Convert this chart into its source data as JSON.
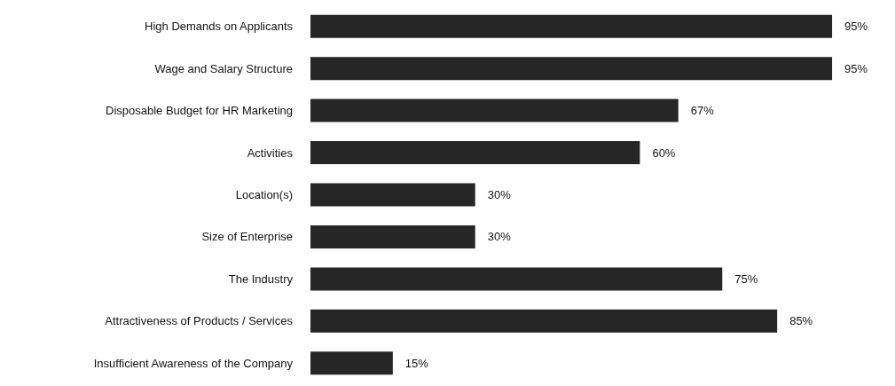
{
  "chart_data": {
    "type": "bar",
    "orientation": "horizontal",
    "categories": [
      "High Demands on Applicants",
      "Wage and Salary Structure",
      "Disposable Budget for HR Marketing",
      "Activities",
      "Location(s)",
      "Size of Enterprise",
      "The Industry",
      "Attractiveness of Products / Services",
      "Insufficient Awareness of the Company"
    ],
    "values": [
      95,
      95,
      67,
      60,
      30,
      30,
      75,
      85,
      15
    ],
    "value_labels": [
      "95%",
      "95%",
      "67%",
      "60%",
      "30%",
      "30%",
      "75%",
      "85%",
      "15%"
    ],
    "color": "#262626"
  }
}
